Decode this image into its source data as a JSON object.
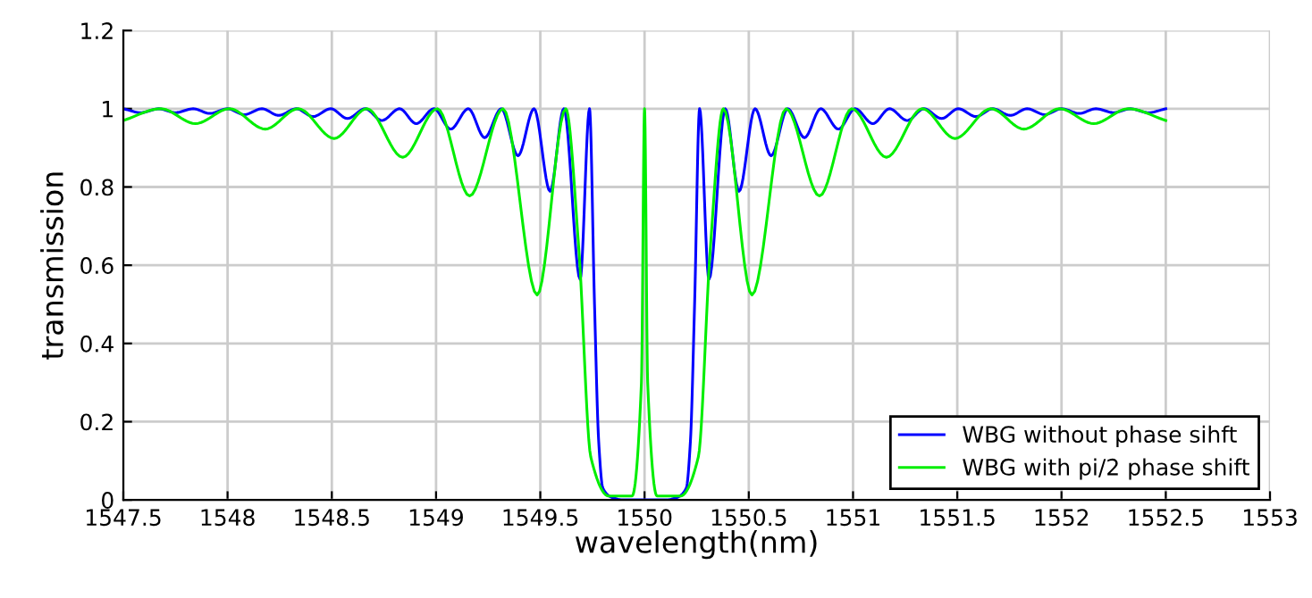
{
  "chart_data": {
    "type": "line",
    "xlabel": "wavelength(nm)",
    "ylabel": "transmission",
    "xlim": [
      1547.5,
      1553
    ],
    "xticks": [
      1547.5,
      1548,
      1548.5,
      1549,
      1549.5,
      1550,
      1550.5,
      1551,
      1551.5,
      1552,
      1552.5,
      1553
    ],
    "ylim": [
      0,
      1.2
    ],
    "yticks": [
      0,
      0.2,
      0.4,
      0.6,
      0.8,
      1,
      1.2
    ],
    "grid": true,
    "legend": "bottom right",
    "line_style": "solid",
    "marker": "none",
    "series": [
      {
        "name": "WBG without phase sihft",
        "color": "#0000ff",
        "x": [
          1547.5,
          1547.585,
          1547.67,
          1547.75,
          1547.835,
          1547.915,
          1548.0,
          1548.08,
          1548.165,
          1548.245,
          1548.33,
          1548.41,
          1548.495,
          1548.575,
          1548.66,
          1548.74,
          1548.825,
          1548.905,
          1548.99,
          1549.07,
          1549.155,
          1549.233,
          1549.313,
          1549.393,
          1549.47,
          1549.547,
          1549.613,
          1549.691,
          1549.736,
          1549.76,
          1549.78,
          1549.8,
          1549.85,
          1549.9,
          1550.1,
          1550.15,
          1550.2,
          1550.22,
          1550.24,
          1550.264,
          1550.309,
          1550.387,
          1550.453,
          1550.53,
          1550.607,
          1550.687,
          1550.767,
          1550.845,
          1550.93,
          1551.01,
          1551.095,
          1551.175,
          1551.26,
          1551.34,
          1551.425,
          1551.505,
          1551.59,
          1551.67,
          1551.755,
          1551.835,
          1551.92,
          1552.0,
          1552.085,
          1552.165,
          1552.25,
          1552.33,
          1552.415,
          1552.5
        ],
        "values": [
          1,
          0.99,
          1,
          0.99,
          1,
          0.988,
          1,
          0.985,
          1,
          0.983,
          1,
          0.98,
          1,
          0.975,
          1,
          0.97,
          1,
          0.962,
          1,
          0.948,
          1,
          0.926,
          1,
          0.88,
          1,
          0.789,
          1,
          0.564,
          1,
          0.5,
          0.15,
          0.03,
          0.005,
          0,
          0,
          0.005,
          0.03,
          0.15,
          0.5,
          1,
          0.564,
          1,
          0.789,
          1,
          0.88,
          1,
          0.926,
          1,
          0.948,
          1,
          0.962,
          1,
          0.97,
          1,
          0.975,
          1,
          0.98,
          1,
          0.983,
          1,
          0.985,
          1,
          0.988,
          1,
          0.99,
          1,
          0.99,
          1
        ]
      },
      {
        "name": "WBG with pi/2 phase shift",
        "color": "#00ee00",
        "x": [
          1547.5,
          1547.68,
          1547.846,
          1548.009,
          1548.181,
          1548.339,
          1548.511,
          1548.668,
          1548.84,
          1549.006,
          1549.161,
          1549.321,
          1549.485,
          1549.622,
          1549.685,
          1549.742,
          1549.828,
          1549.94,
          1549.985,
          1550,
          1550.015,
          1550.06,
          1550.172,
          1550.258,
          1550.315,
          1550.378,
          1550.515,
          1550.679,
          1550.839,
          1550.994,
          1551.16,
          1551.332,
          1551.489,
          1551.661,
          1551.819,
          1551.991,
          1552.154,
          1552.32,
          1552.5
        ],
        "values": [
          0.97,
          1,
          0.962,
          1,
          0.948,
          1,
          0.924,
          1,
          0.876,
          1,
          0.777,
          1,
          0.524,
          1,
          0.64,
          0.11,
          0.01,
          0.01,
          0.3,
          1,
          0.3,
          0.01,
          0.01,
          0.11,
          0.64,
          1,
          0.524,
          1,
          0.777,
          1,
          0.876,
          1,
          0.924,
          1,
          0.948,
          1,
          0.962,
          1,
          0.97
        ]
      }
    ]
  }
}
